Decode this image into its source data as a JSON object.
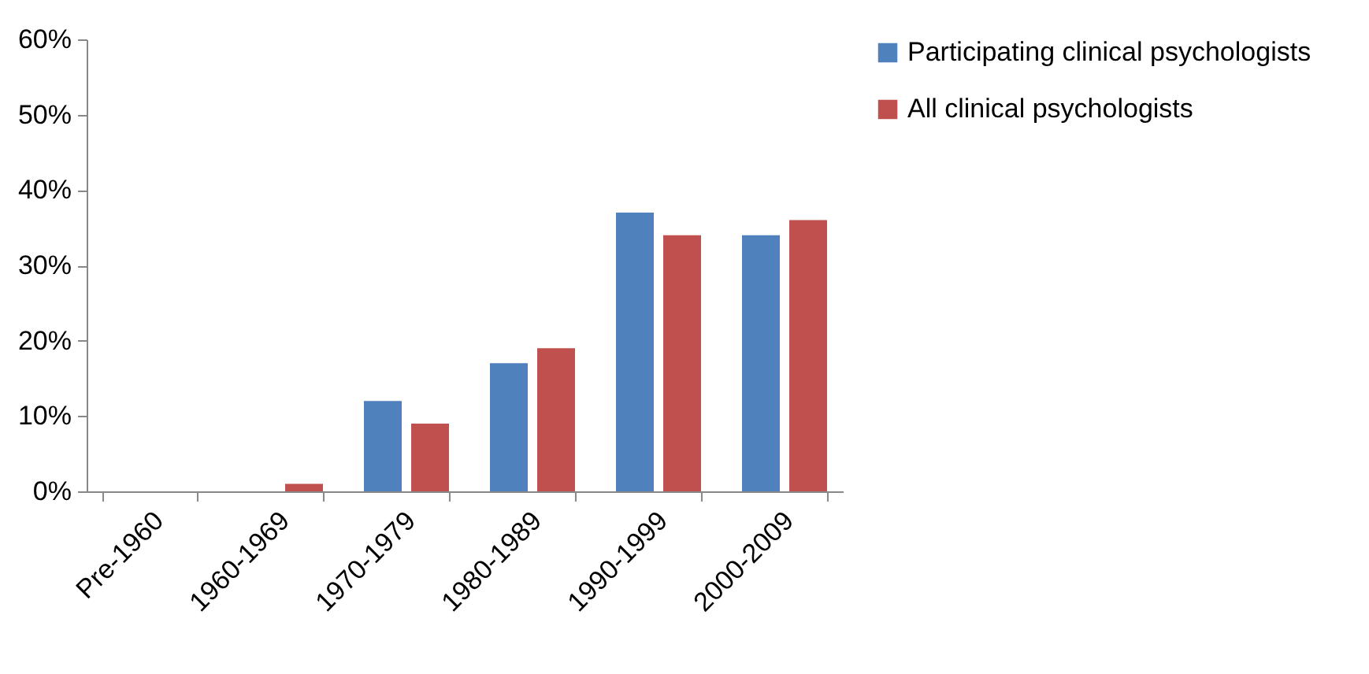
{
  "chart_data": {
    "type": "bar",
    "categories": [
      "Pre-1960",
      "1960-1969",
      "1970-1979",
      "1980-1989",
      "1990-1999",
      "2000-2009"
    ],
    "series": [
      {
        "name": "Participating clinical psychologists",
        "color": "#4f81bd",
        "values": [
          0,
          0,
          12,
          17,
          37,
          34
        ]
      },
      {
        "name": "All clinical psychologists",
        "color": "#c0504d",
        "values": [
          0,
          1,
          9,
          19,
          34,
          36
        ]
      }
    ],
    "ylim": [
      0,
      60
    ],
    "yticks": [
      {
        "value": 0,
        "label": "0%"
      },
      {
        "value": 10,
        "label": "10%"
      },
      {
        "value": 20,
        "label": "20%"
      },
      {
        "value": 30,
        "label": "30%"
      },
      {
        "value": 40,
        "label": "40%"
      },
      {
        "value": 50,
        "label": "50%"
      },
      {
        "value": 60,
        "label": "60%"
      }
    ],
    "grid": false,
    "legend": "right"
  }
}
